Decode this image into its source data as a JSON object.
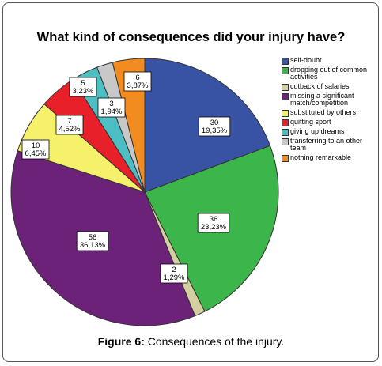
{
  "figure": {
    "caption_prefix": "Figure 6:",
    "caption_text": " Consequences of the injury."
  },
  "chart_data": {
    "type": "pie",
    "title": "What kind of consequences did your injury have?",
    "legend_position": "right",
    "slices": [
      {
        "label": "self-doubt",
        "value": 30,
        "percent": "19,35%",
        "color": "#3953a4"
      },
      {
        "label": "dropping out of common activities",
        "value": 36,
        "percent": "23,23%",
        "color": "#3cb54a"
      },
      {
        "label": "cutback of salaries",
        "value": 2,
        "percent": "1,29%",
        "color": "#d4cfa0"
      },
      {
        "label": "missing a significant match/competition",
        "value": 56,
        "percent": "36,13%",
        "color": "#6b2278"
      },
      {
        "label": "substituted by others",
        "value": 10,
        "percent": "6,45%",
        "color": "#f5f16b"
      },
      {
        "label": "quitting sport",
        "value": 7,
        "percent": "4,52%",
        "color": "#e8202a"
      },
      {
        "label": "giving up dreams",
        "value": 5,
        "percent": "3,23%",
        "color": "#4bbfc4"
      },
      {
        "label": "transferring to an other team",
        "value": 3,
        "percent": "1,94%",
        "color": "#c8c8c8"
      },
      {
        "label": "nothing remarkable",
        "value": 6,
        "percent": "3,87%",
        "color": "#f28c20"
      }
    ]
  }
}
